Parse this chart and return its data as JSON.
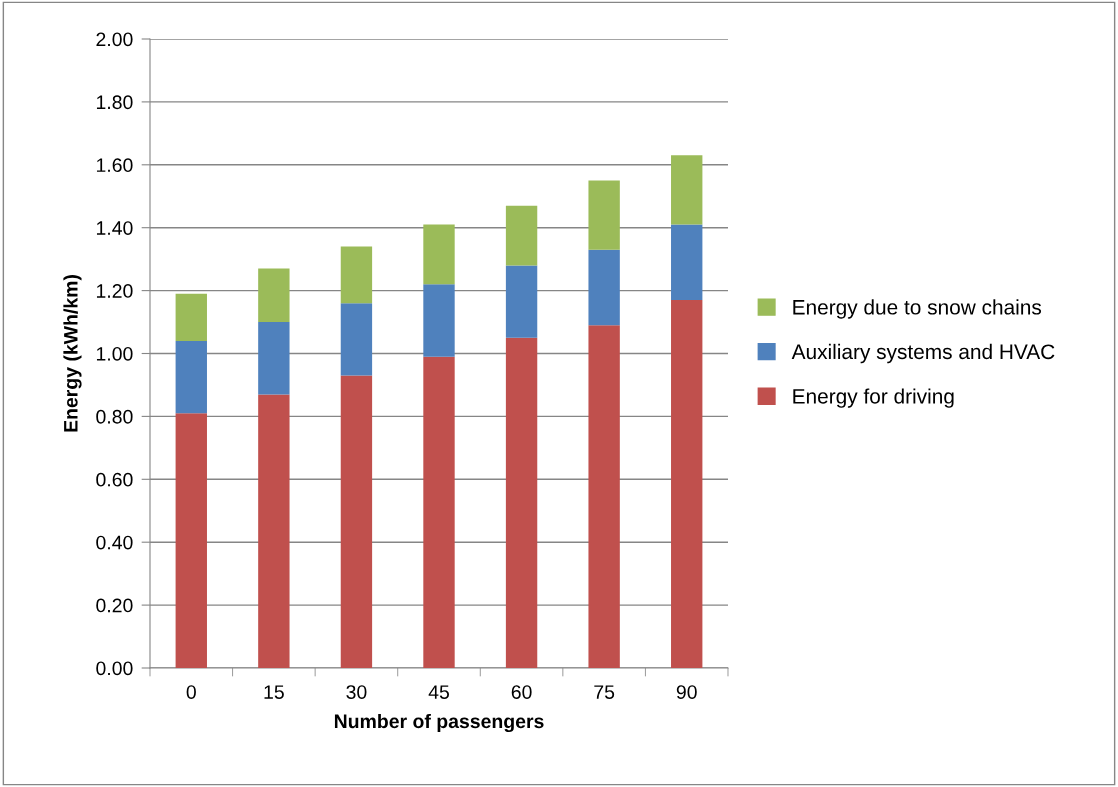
{
  "chart_data": {
    "type": "bar",
    "stacked": true,
    "xlabel": "Number of passengers",
    "ylabel": "Energy (kWh/km)",
    "categories": [
      "0",
      "15",
      "30",
      "45",
      "60",
      "75",
      "90"
    ],
    "series": [
      {
        "name": "Energy for driving",
        "color": "#c0504d",
        "values": [
          0.81,
          0.87,
          0.93,
          0.99,
          1.05,
          1.09,
          1.17
        ]
      },
      {
        "name": "Auxiliary systems and HVAC",
        "color": "#4f81bd",
        "values": [
          0.23,
          0.23,
          0.23,
          0.23,
          0.23,
          0.24,
          0.24
        ]
      },
      {
        "name": "Energy due to snow chains",
        "color": "#9bbb59",
        "values": [
          0.15,
          0.17,
          0.18,
          0.19,
          0.19,
          0.22,
          0.22
        ]
      }
    ],
    "ylim": [
      0,
      2
    ],
    "yticks": [
      {
        "value": 0,
        "label": "0.00"
      },
      {
        "value": 0.2,
        "label": "0.20"
      },
      {
        "value": 0.4,
        "label": "0.40"
      },
      {
        "value": 0.6,
        "label": "0.60"
      },
      {
        "value": 0.8,
        "label": "0.80"
      },
      {
        "value": 1.0,
        "label": "1.00"
      },
      {
        "value": 1.2,
        "label": "1.20"
      },
      {
        "value": 1.4,
        "label": "1.40"
      },
      {
        "value": 1.6,
        "label": "1.60"
      },
      {
        "value": 1.8,
        "label": "1.80"
      },
      {
        "value": 2.0,
        "label": "2.00"
      }
    ],
    "grid": "y",
    "legend": "right"
  }
}
